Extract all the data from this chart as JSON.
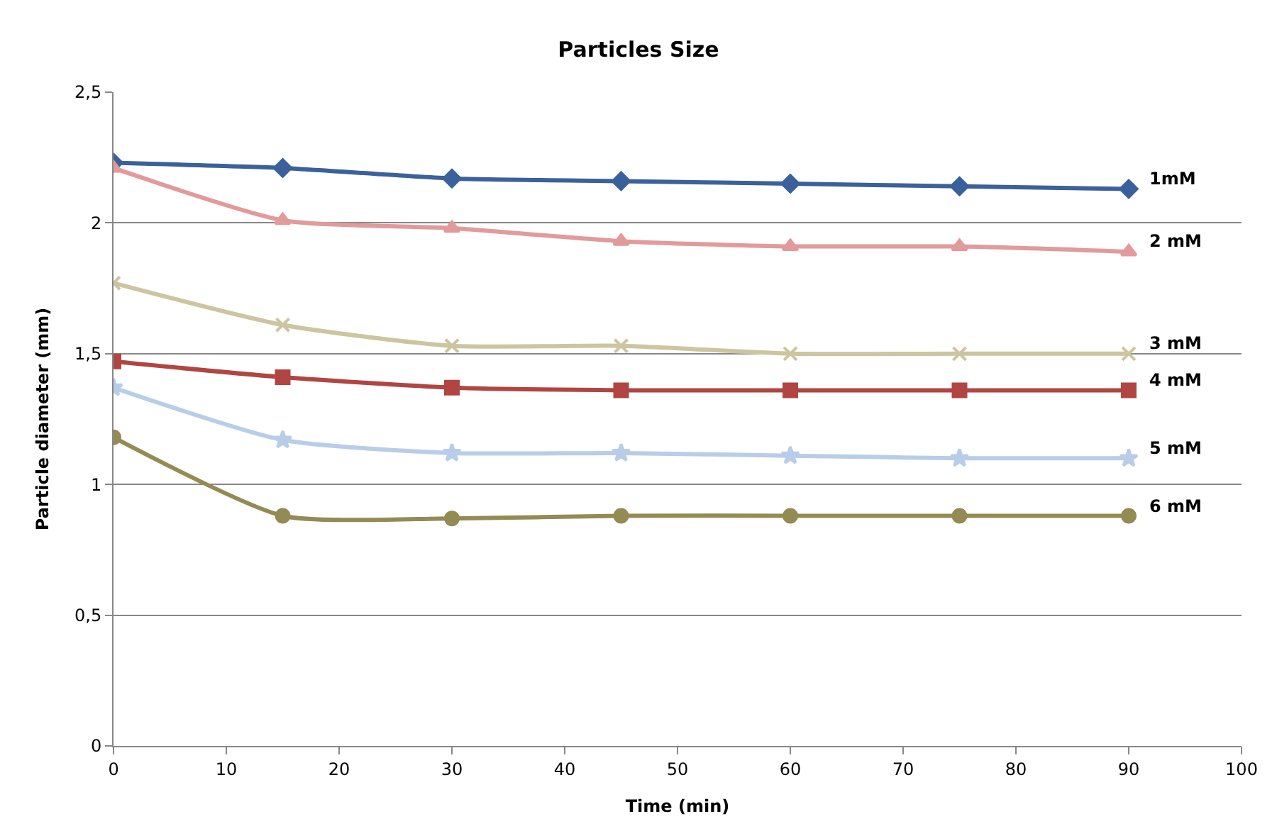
{
  "chart_data": {
    "type": "line",
    "title": "Particles Size",
    "xlabel": "Time (min)",
    "ylabel": "Particle diameter (mm)",
    "x": [
      0,
      15,
      30,
      45,
      60,
      75,
      90
    ],
    "xlim": [
      0,
      100
    ],
    "xticks": [
      0,
      10,
      20,
      30,
      40,
      50,
      60,
      70,
      80,
      90,
      100
    ],
    "ylim": [
      0,
      2.5
    ],
    "yticks": [
      0,
      {
        "value": 0.5,
        "label": "0,5"
      },
      1,
      {
        "value": 1.5,
        "label": "1,5"
      },
      2,
      {
        "value": 2.5,
        "label": "2,5"
      }
    ],
    "grid": "y",
    "legend": false,
    "line_style": "solid",
    "series": [
      {
        "name": "1mM",
        "color": "#3a619b",
        "marker": "diamond",
        "values": [
          2.23,
          2.21,
          2.17,
          2.16,
          2.15,
          2.14,
          2.13
        ]
      },
      {
        "name": "2 mM",
        "color": "#e29a9a",
        "marker": "triangle",
        "values": [
          2.21,
          2.01,
          1.98,
          1.93,
          1.91,
          1.91,
          1.89
        ]
      },
      {
        "name": "3 mM",
        "color": "#cdc5a0",
        "marker": "cross",
        "values": [
          1.77,
          1.61,
          1.53,
          1.53,
          1.5,
          1.5,
          1.5
        ]
      },
      {
        "name": "4 mM",
        "color": "#b04542",
        "marker": "square",
        "values": [
          1.47,
          1.41,
          1.37,
          1.36,
          1.36,
          1.36,
          1.36
        ]
      },
      {
        "name": "5 mM",
        "color": "#b8cde8",
        "marker": "star",
        "values": [
          1.37,
          1.17,
          1.12,
          1.12,
          1.11,
          1.1,
          1.1
        ]
      },
      {
        "name": "6 mM",
        "color": "#948b54",
        "marker": "circle",
        "values": [
          1.18,
          0.88,
          0.87,
          0.88,
          0.88,
          0.88,
          0.88
        ]
      }
    ]
  }
}
